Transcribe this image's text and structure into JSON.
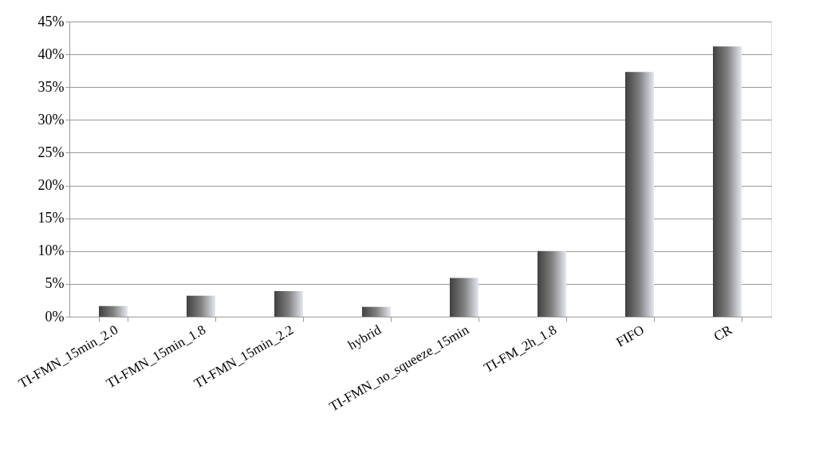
{
  "chart_data": {
    "type": "bar",
    "categories": [
      "TI-FMN_15min_2.0",
      "TI-FMN_15min_1.8",
      "TI-FMN_15min_2.2",
      "hybrid",
      "TI-FMN_no_squeeze_15min",
      "TI-FM_2h_1.8",
      "FIFO",
      "CR"
    ],
    "values": [
      1.6,
      3.2,
      3.9,
      1.5,
      5.9,
      10.0,
      37.3,
      41.2
    ],
    "color": "#808080",
    "ylim": [
      0,
      45
    ],
    "yticks": [
      {
        "value": 0,
        "label": "0%"
      },
      {
        "value": 5,
        "label": "5%"
      },
      {
        "value": 10,
        "label": "10%"
      },
      {
        "value": 15,
        "label": "15%"
      },
      {
        "value": 20,
        "label": "20%"
      },
      {
        "value": 25,
        "label": "25%"
      },
      {
        "value": 30,
        "label": "30%"
      },
      {
        "value": 35,
        "label": "35%"
      },
      {
        "value": 40,
        "label": "40%"
      },
      {
        "value": 45,
        "label": "45%"
      }
    ],
    "grid": "y"
  }
}
